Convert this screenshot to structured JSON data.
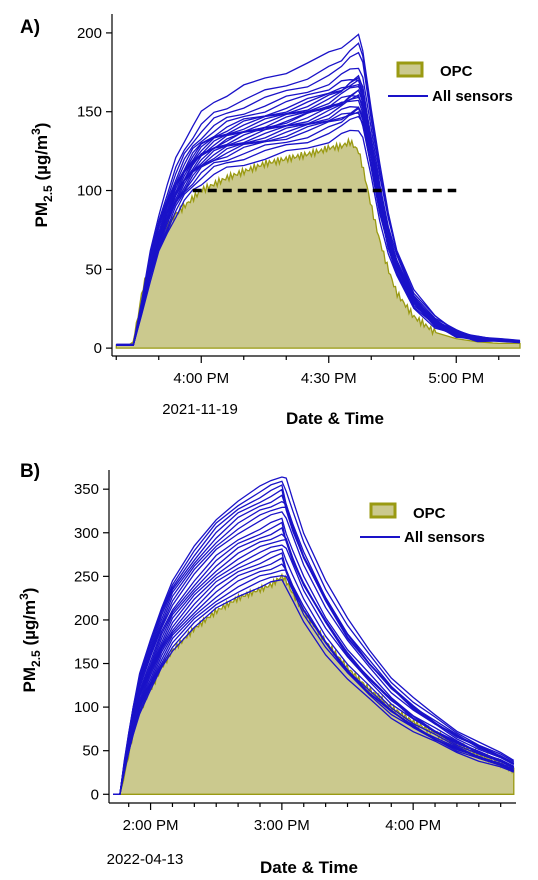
{
  "chart_data": [
    {
      "type": "area",
      "panel_label": "A)",
      "xlabel": "Date & Time",
      "ylabel": "PM2.5 (µg/m3)",
      "ylabel_parts": {
        "main": "PM",
        "sub": "2.5",
        "unit": " (µg/m",
        "sup": "3",
        "close": ")"
      },
      "date_label": "2021-11-19",
      "x_unit": "minutes",
      "xlim": [
        -21,
        75
      ],
      "ylim": [
        -5,
        212
      ],
      "y_ticks": [
        0,
        50,
        100,
        150,
        200
      ],
      "x_ticks": [
        {
          "t": 0,
          "label": "4:00 PM"
        },
        {
          "t": 30,
          "label": "4:30 PM"
        },
        {
          "t": 60,
          "label": "5:00 PM"
        }
      ],
      "threshold": 100,
      "legend": {
        "position": "top-right",
        "opc_label": "OPC",
        "sensors_label": "All sensors"
      },
      "colors": {
        "opc_fill": "#cbc98e",
        "opc_line": "#9a9a12",
        "sensors": "#1a12c8",
        "threshold": "#000000"
      },
      "opc": {
        "t": [
          -20,
          -17,
          -16,
          -15,
          -14,
          -12,
          -10,
          -8,
          -6,
          -4,
          -2,
          0,
          3,
          6,
          10,
          15,
          20,
          25,
          28,
          30,
          33,
          35,
          37,
          38,
          40,
          42,
          44,
          46,
          50,
          55,
          60,
          65,
          70,
          75
        ],
        "v": [
          2,
          2,
          4,
          18,
          35,
          55,
          68,
          78,
          85,
          90,
          95,
          100,
          104,
          108,
          112,
          117,
          120,
          123,
          125,
          127,
          128,
          131,
          125,
          115,
          90,
          68,
          50,
          35,
          20,
          10,
          6,
          4,
          3,
          3
        ]
      },
      "sensors": {
        "t": [
          -20,
          -16,
          -14,
          -12,
          -10,
          -8,
          -6,
          -4,
          -2,
          0,
          3,
          6,
          10,
          15,
          20,
          25,
          30,
          33,
          35,
          37,
          38,
          40,
          42,
          44,
          46,
          50,
          55,
          60,
          65,
          70,
          75
        ],
        "base": [
          2,
          2,
          25,
          50,
          70,
          85,
          98,
          108,
          116,
          122,
          128,
          132,
          136,
          140,
          144,
          148,
          153,
          157,
          160,
          162,
          155,
          125,
          95,
          70,
          52,
          30,
          16,
          9,
          6,
          5,
          4
        ],
        "scales": [
          0.86,
          0.89,
          0.91,
          0.93,
          0.94,
          0.95,
          0.96,
          0.97,
          0.98,
          0.99,
          1.0,
          1.0,
          1.01,
          1.02,
          1.03,
          1.04,
          1.05,
          1.06,
          1.08,
          1.1,
          1.13,
          1.16,
          1.22
        ]
      }
    },
    {
      "type": "area",
      "panel_label": "B)",
      "xlabel": "Date & Time",
      "ylabel": "PM2.5 (µg/m3)",
      "ylabel_parts": {
        "main": "PM",
        "sub": "2.5",
        "unit": " (µg/m",
        "sup": "3",
        "close": ")"
      },
      "date_label": "2022-04-13",
      "x_unit": "minutes",
      "xlim": [
        -19,
        167
      ],
      "ylim": [
        -10,
        372
      ],
      "y_ticks": [
        0,
        50,
        100,
        150,
        200,
        250,
        300,
        350
      ],
      "x_ticks": [
        {
          "t": 0,
          "label": "2:00 PM"
        },
        {
          "t": 60,
          "label": "3:00 PM"
        },
        {
          "t": 120,
          "label": "4:00 PM"
        }
      ],
      "legend": {
        "position": "top-right",
        "opc_label": "OPC",
        "sensors_label": "All sensors"
      },
      "colors": {
        "opc_fill": "#cbc98e",
        "opc_line": "#9a9a12",
        "sensors": "#1a12c8"
      },
      "opc": {
        "t": [
          -17,
          -14,
          -13,
          -12,
          -10,
          -8,
          -5,
          0,
          5,
          10,
          20,
          30,
          40,
          50,
          55,
          60,
          62,
          65,
          70,
          80,
          90,
          100,
          110,
          120,
          130,
          140,
          150,
          160,
          166
        ],
        "v": [
          0,
          0,
          10,
          22,
          45,
          70,
          95,
          120,
          145,
          165,
          190,
          210,
          225,
          235,
          240,
          250,
          245,
          230,
          210,
          175,
          145,
          120,
          100,
          83,
          70,
          57,
          46,
          35,
          28
        ]
      },
      "sensors": {
        "t": [
          -17,
          -14,
          -13,
          -12,
          -10,
          -8,
          -5,
          0,
          5,
          10,
          20,
          30,
          40,
          50,
          55,
          60,
          62,
          65,
          70,
          80,
          90,
          100,
          110,
          120,
          130,
          140,
          150,
          160,
          166
        ],
        "base": [
          0,
          0,
          15,
          30,
          55,
          80,
          110,
          140,
          170,
          195,
          225,
          250,
          268,
          280,
          285,
          290,
          280,
          260,
          232,
          190,
          155,
          128,
          104,
          85,
          70,
          57,
          46,
          37,
          30
        ],
        "scales": [
          0.85,
          0.87,
          0.89,
          0.91,
          0.93,
          0.95,
          0.97,
          0.99,
          1.01,
          1.03,
          1.05,
          1.07,
          1.09,
          1.12,
          1.14,
          1.16,
          1.18,
          1.2,
          1.22,
          1.24,
          1.26
        ]
      }
    }
  ]
}
